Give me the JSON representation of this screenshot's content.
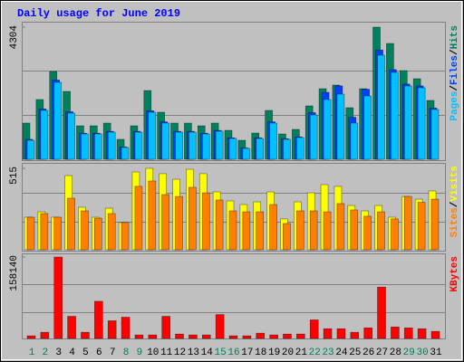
{
  "chart_data": [
    {
      "type": "bar",
      "title": "Daily usage for June 2019",
      "ylim": [
        0,
        4304
      ],
      "yticks": [
        4304
      ],
      "separator": "/",
      "series": [
        {
          "name": "Hits",
          "color": "#00805c",
          "values": [
            1179,
            1946,
            2860,
            2211,
            1091,
            1091,
            1179,
            649,
            1091,
            2240,
            1533,
            1179,
            1179,
            1091,
            1179,
            943,
            619,
            855,
            1592,
            825,
            973,
            1739,
            2299,
            2417,
            1680,
            2299,
            4304,
            3773,
            2889,
            2624,
            1916
          ]
        },
        {
          "name": "Files",
          "color": "#0040ff",
          "values": [
            650,
            1640,
            2580,
            1550,
            850,
            850,
            910,
            400,
            910,
            1580,
            1220,
            910,
            910,
            850,
            940,
            700,
            370,
            700,
            1220,
            670,
            730,
            1520,
            2180,
            2390,
            1370,
            2280,
            3560,
            2920,
            2450,
            2390,
            1670
          ]
        },
        {
          "name": "Pages",
          "color": "#00c0ff",
          "values": [
            619,
            1592,
            2506,
            1503,
            825,
            825,
            884,
            383,
            884,
            1533,
            1179,
            884,
            884,
            825,
            914,
            678,
            354,
            678,
            1179,
            649,
            708,
            1444,
            1946,
            2122,
            1179,
            2063,
            3390,
            2830,
            2388,
            2329,
            1621
          ]
        }
      ]
    },
    {
      "type": "bar",
      "ylim": [
        0,
        515
      ],
      "yticks": [
        515
      ],
      "separator": "/",
      "series": [
        {
          "name": "Visits",
          "color": "#ffff00",
          "values": [
            206,
            240,
            206,
            469,
            269,
            206,
            263,
            172,
            492,
            515,
            481,
            446,
            509,
            481,
            366,
            309,
            286,
            303,
            366,
            195,
            303,
            360,
            412,
            401,
            280,
            246,
            280,
            206,
            337,
            320,
            372
          ]
        },
        {
          "name": "Sites",
          "color": "#ff8000",
          "values": [
            206,
            229,
            206,
            326,
            246,
            200,
            229,
            172,
            401,
            435,
            349,
            337,
            395,
            360,
            315,
            246,
            240,
            240,
            286,
            166,
            246,
            246,
            240,
            292,
            252,
            212,
            240,
            195,
            337,
            300,
            320
          ]
        }
      ]
    },
    {
      "type": "bar",
      "ylim": [
        0,
        158140
      ],
      "yticks": [
        158140
      ],
      "categories": [
        "1",
        "2",
        "3",
        "4",
        "5",
        "6",
        "7",
        "8",
        "9",
        "10",
        "11",
        "12",
        "13",
        "14",
        "15",
        "16",
        "17",
        "18",
        "19",
        "20",
        "21",
        "22",
        "23",
        "24",
        "25",
        "26",
        "27",
        "28",
        "29",
        "30",
        "31"
      ],
      "category_colors": [
        "#00805c",
        "#00805c",
        "#000000",
        "#000000",
        "#000000",
        "#000000",
        "#000000",
        "#00805c",
        "#00805c",
        "#000000",
        "#000000",
        "#000000",
        "#000000",
        "#000000",
        "#00805c",
        "#00805c",
        "#000000",
        "#000000",
        "#000000",
        "#000000",
        "#000000",
        "#00805c",
        "#00805c",
        "#000000",
        "#000000",
        "#000000",
        "#000000",
        "#000000",
        "#00805c",
        "#00805c",
        "#000000"
      ],
      "series": [
        {
          "name": "KBytes",
          "color": "#ff0000",
          "values": [
            5157,
            12032,
            158140,
            42973,
            12032,
            72194,
            34378,
            41254,
            6876,
            6876,
            42973,
            8594,
            6876,
            6876,
            46410,
            5157,
            5157,
            10313,
            6876,
            8594,
            8594,
            36097,
            18908,
            18908,
            12032,
            20627,
            99697,
            22345,
            20627,
            18908,
            13751
          ]
        }
      ]
    }
  ]
}
